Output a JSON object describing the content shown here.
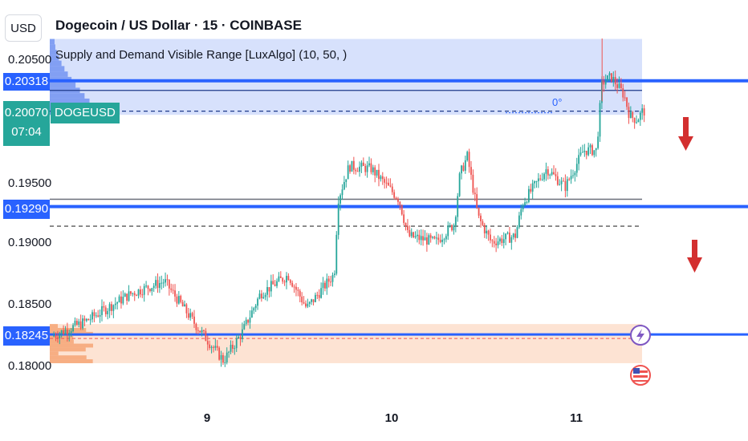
{
  "header": {
    "currency": "USD",
    "title": "Dogecoin / US Dollar · 15 · COINBASE",
    "indicator": "Supply and Demand Visible Range [LuxAlgo] (10, 50, )"
  },
  "symbol_tag": "DOGEUSD",
  "badges": {
    "upper_level": "0.20318",
    "last_price": "0.20070",
    "countdown": "07:04",
    "mid_level": "0.19290",
    "lower_level": "0.18245"
  },
  "annotation": "0°",
  "colors": {
    "up": "#26a69a",
    "down": "#ef5350",
    "level_line": "#2962ff",
    "supply_zone": "#d0dcfb",
    "demand_zone": "#fde0ce",
    "arrow": "#d32f2f"
  },
  "icons": [
    "lightning-icon",
    "us-flag-icon",
    "down-arrow-icon",
    "down-arrow-icon"
  ],
  "chart_data": {
    "type": "candlestick",
    "title": "Dogecoin / US Dollar · 15 · COINBASE",
    "y_ticks": [
      "0.20500",
      "0.19500",
      "0.19000",
      "0.18500",
      "0.18000"
    ],
    "x_ticks": [
      "9",
      "10",
      "11"
    ],
    "ylim": [
      0.1775,
      0.2065
    ],
    "x_range_days": [
      8.17,
      11.4
    ],
    "price_path": [
      [
        8.17,
        0.1823
      ],
      [
        8.35,
        0.1835
      ],
      [
        8.6,
        0.1858
      ],
      [
        8.78,
        0.1868
      ],
      [
        8.95,
        0.1832
      ],
      [
        9.1,
        0.1803
      ],
      [
        9.2,
        0.1826
      ],
      [
        9.3,
        0.1858
      ],
      [
        9.45,
        0.1873
      ],
      [
        9.55,
        0.1846
      ],
      [
        9.7,
        0.1874
      ],
      [
        9.72,
        0.1935
      ],
      [
        9.78,
        0.1962
      ],
      [
        9.9,
        0.196
      ],
      [
        10.05,
        0.1935
      ],
      [
        10.1,
        0.1905
      ],
      [
        10.25,
        0.19
      ],
      [
        10.35,
        0.1915
      ],
      [
        10.38,
        0.1955
      ],
      [
        10.42,
        0.197
      ],
      [
        10.48,
        0.192
      ],
      [
        10.55,
        0.19
      ],
      [
        10.68,
        0.1905
      ],
      [
        10.72,
        0.1932
      ],
      [
        10.85,
        0.196
      ],
      [
        10.95,
        0.1945
      ],
      [
        11.05,
        0.1975
      ],
      [
        11.12,
        0.1975
      ],
      [
        11.15,
        0.203
      ],
      [
        11.2,
        0.2035
      ],
      [
        11.27,
        0.202
      ],
      [
        11.3,
        0.2003
      ],
      [
        11.34,
        0.2
      ],
      [
        11.37,
        0.2007
      ]
    ],
    "levels": {
      "upper": 0.20318,
      "last_price": 0.2007,
      "gray": 0.1935,
      "mid": 0.1929,
      "dashed": 0.1913,
      "lower": 0.18245
    },
    "zones": {
      "supply": [
        0.2004,
        0.2066
      ],
      "demand": [
        0.1801,
        0.1833
      ]
    },
    "grid": false,
    "legend": "none"
  }
}
